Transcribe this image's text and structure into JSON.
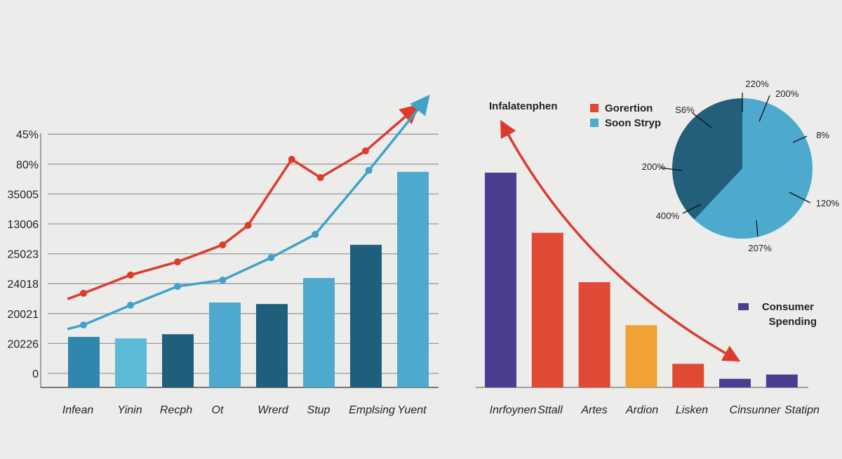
{
  "chart_data": [
    {
      "type": "bar",
      "ytick_labels": [
        "0",
        "20226",
        "20021",
        "24018",
        "25023",
        "13006",
        "35005",
        "80%",
        "45%"
      ],
      "categories": [
        "Infean",
        "Yinin",
        "Recph",
        "Ot",
        "Wrerd",
        "Stup",
        "Emplsing",
        "Yuent"
      ],
      "grid": true,
      "values": [
        1.22,
        1.17,
        1.31,
        2.37,
        2.32,
        3.19,
        4.3,
        6.74
      ],
      "bar_colors": [
        "#2f87ad",
        "#5dbad6",
        "#1f5f7b",
        "#4da9cd",
        "#1f5f7b",
        "#4da9cd",
        "#1f5f7b",
        "#4da9cd"
      ],
      "lines": [
        {
          "color": "#dd3b2e",
          "arrow": true,
          "points": [
            [
              -0.34,
              2.49
            ],
            [
              0,
              2.68
            ],
            [
              1,
              3.29
            ],
            [
              2,
              3.73
            ],
            [
              2.96,
              4.3
            ],
            [
              3.5,
              4.95
            ],
            [
              4.43,
              7.16
            ],
            [
              5.04,
              6.55
            ],
            [
              6.0,
              7.44
            ],
            [
              7.04,
              8.85
            ]
          ]
        },
        {
          "color": "#3fa3c9",
          "arrow": true,
          "points": [
            [
              -0.34,
              1.48
            ],
            [
              0,
              1.62
            ],
            [
              1,
              2.28
            ],
            [
              2,
              2.91
            ],
            [
              2.96,
              3.12
            ],
            [
              3.99,
              3.87
            ],
            [
              4.93,
              4.65
            ],
            [
              6.07,
              6.79
            ],
            [
              7.27,
              9.13
            ]
          ]
        }
      ]
    },
    {
      "type": "bar",
      "title": "Infalatenphen",
      "categories": [
        "Inrfoynen",
        "Sttall",
        "Artes",
        "Ardion",
        "Lisken",
        "Cinsunner",
        "Statipn"
      ],
      "values": [
        100,
        72,
        49,
        29,
        11,
        4,
        6
      ],
      "bar_colors": [
        "#4b3d8f",
        "#e04a35",
        "#e04a35",
        "#f0a334",
        "#e04a35",
        "#4b3d8f",
        "#4b3d8f"
      ],
      "legend": [
        {
          "label": "Consumer Spending",
          "color": "#4b3d8f"
        }
      ],
      "annotation": "double-headed red curved arrow"
    },
    {
      "type": "pie",
      "slices": [
        {
          "value": 62,
          "color": "#4da9cd"
        },
        {
          "value": 38,
          "color": "#235f7b"
        }
      ],
      "labels": [
        "220%",
        "200%",
        "8%",
        "120%",
        "207%",
        "400%",
        "200%",
        "S6%"
      ],
      "legend": [
        {
          "label": "Gorertion",
          "color": "#e04a35"
        },
        {
          "label": "Soon Stryp",
          "color": "#4da9cd"
        }
      ]
    }
  ]
}
